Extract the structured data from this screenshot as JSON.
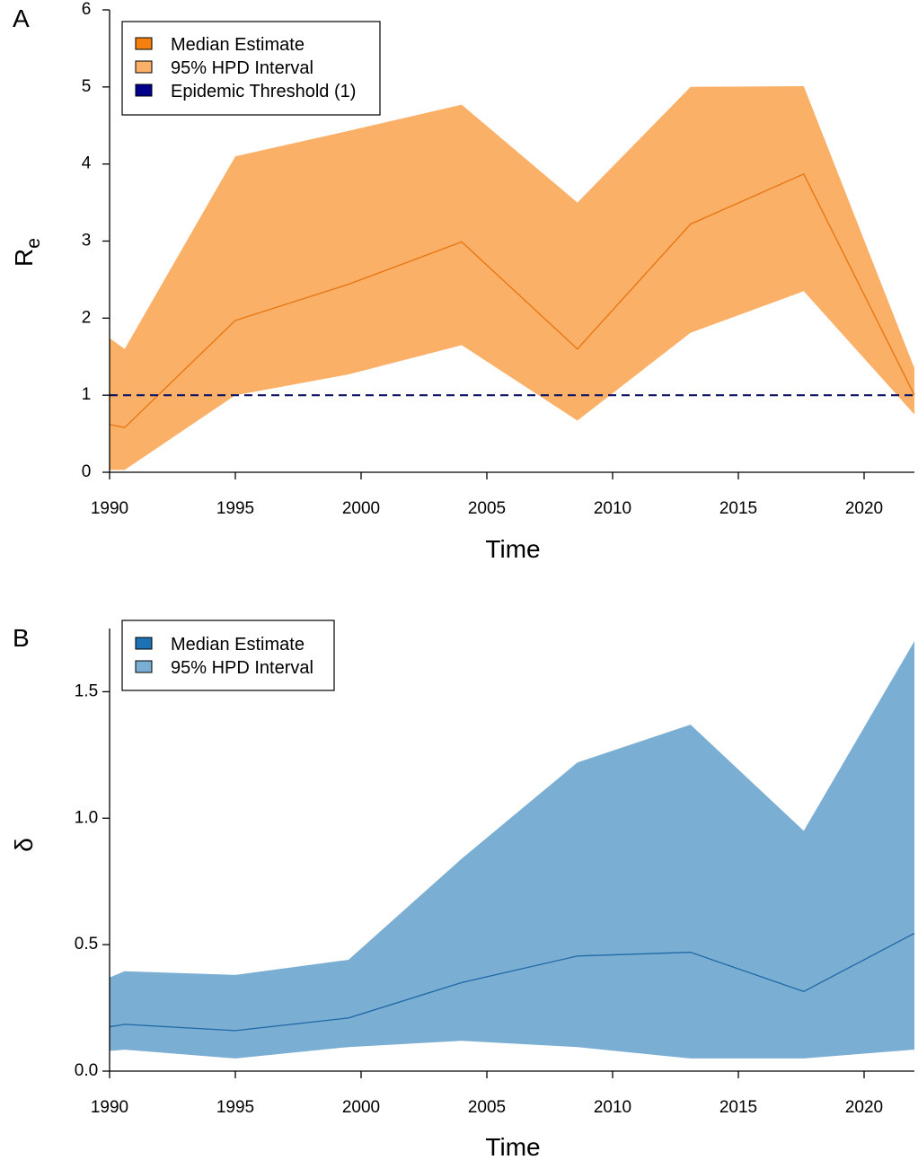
{
  "colors": {
    "orange_median": "#e6740f",
    "orange_band": "#fbb068",
    "blue_median": "#1f69a8",
    "blue_band": "#7aaed3",
    "threshold": "#0f1466",
    "legend_orange_median": "#f5800f",
    "legend_blue_median": "#1c72b3",
    "legend_threshold": "#00008b"
  },
  "chart_data": [
    {
      "type": "area",
      "panel_label": "A",
      "xlabel": "Time",
      "ylabel": "R",
      "ylabel_subscript": "e",
      "xlim": [
        1990,
        2022
      ],
      "ylim": [
        0,
        6
      ],
      "xticks": [
        1990,
        1995,
        2000,
        2005,
        2010,
        2015,
        2020
      ],
      "yticks": [
        0,
        1,
        2,
        3,
        4,
        5,
        6
      ],
      "x": [
        1990,
        1990.6,
        1995,
        1999.5,
        2004,
        2008.6,
        2013.1,
        2017.6,
        2022
      ],
      "median": [
        0.62,
        0.58,
        1.97,
        2.44,
        2.99,
        1.6,
        3.22,
        3.87,
        1.0
      ],
      "hpd_lower": [
        0.03,
        0.03,
        1.0,
        1.27,
        1.65,
        0.67,
        1.81,
        2.35,
        0.75
      ],
      "hpd_upper": [
        1.74,
        1.6,
        4.1,
        4.43,
        4.77,
        3.5,
        5.0,
        5.01,
        1.35
      ],
      "threshold": 1,
      "legend": {
        "position": "top-left",
        "items": [
          "Median Estimate",
          "95% HPD Interval",
          "Epidemic Threshold (1)"
        ]
      }
    },
    {
      "type": "area",
      "panel_label": "B",
      "xlabel": "Time",
      "ylabel": "δ",
      "xlim": [
        1990,
        2022
      ],
      "ylim": [
        0,
        1.75
      ],
      "xticks": [
        1990,
        1995,
        2000,
        2005,
        2010,
        2015,
        2020
      ],
      "yticks": [
        0.0,
        0.5,
        1.0,
        1.5
      ],
      "ytick_labels": [
        "0.0",
        "0.5",
        "1.0",
        "1.5"
      ],
      "x": [
        1990,
        1990.6,
        1995,
        1999.5,
        2004,
        2008.6,
        2013.1,
        2017.6,
        2022
      ],
      "median": [
        0.175,
        0.185,
        0.16,
        0.21,
        0.35,
        0.455,
        0.47,
        0.315,
        0.545
      ],
      "hpd_lower": [
        0.08,
        0.085,
        0.05,
        0.095,
        0.12,
        0.095,
        0.05,
        0.05,
        0.085
      ],
      "hpd_upper": [
        0.37,
        0.395,
        0.38,
        0.44,
        0.84,
        1.22,
        1.37,
        0.95,
        1.7
      ],
      "legend": {
        "position": "top-left",
        "items": [
          "Median Estimate",
          "95% HPD Interval"
        ]
      }
    }
  ]
}
